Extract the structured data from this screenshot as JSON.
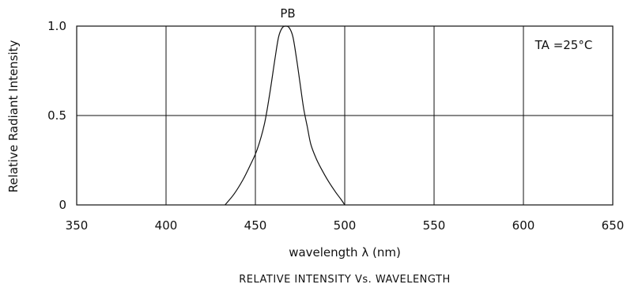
{
  "chart_data": {
    "type": "line",
    "title": "PB",
    "annotation": "TA =25°C",
    "xlabel": "wavelength λ (nm)",
    "ylabel": "Relative Radiant Intensity",
    "caption": "RELATIVE INTENSITY Vs. WAVELENGTH",
    "xlim": [
      350,
      650
    ],
    "ylim": [
      0,
      1.0
    ],
    "xticks": [
      350,
      400,
      450,
      500,
      550,
      600,
      650
    ],
    "yticks": [
      0,
      0.5,
      1.0
    ],
    "ytick_labels": [
      "0",
      "0.5",
      "1.0"
    ],
    "grid": true,
    "series": [
      {
        "x": [
          433,
          438,
          443,
          447,
          451,
          455,
          458,
          461,
          463,
          465,
          467,
          469,
          471,
          473,
          475,
          477,
          479,
          481,
          484,
          487,
          491,
          495,
          498,
          500
        ],
        "y": [
          0.0,
          0.06,
          0.14,
          0.22,
          0.31,
          0.45,
          0.62,
          0.82,
          0.94,
          0.99,
          1.0,
          0.99,
          0.94,
          0.82,
          0.68,
          0.54,
          0.44,
          0.34,
          0.26,
          0.2,
          0.13,
          0.07,
          0.03,
          0.0
        ]
      }
    ]
  }
}
